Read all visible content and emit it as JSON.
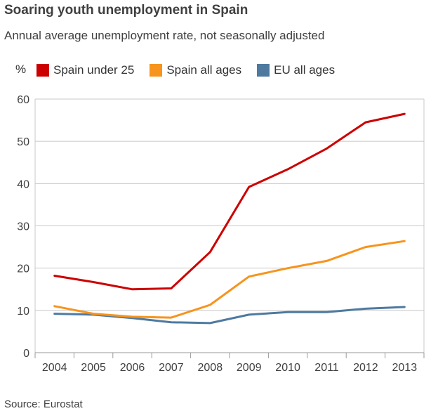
{
  "title": "Soaring youth unemployment in Spain",
  "subtitle": "Annual average unemployment rate, not seasonally adjusted",
  "source": "Source: Eurostat",
  "chart_data": {
    "type": "line",
    "x": [
      "2004",
      "2005",
      "2006",
      "2007",
      "2008",
      "2009",
      "2010",
      "2011",
      "2012",
      "2013"
    ],
    "ylabel": "%",
    "ylim": [
      0,
      60
    ],
    "yticks": [
      0,
      10,
      20,
      30,
      40,
      50,
      60
    ],
    "grid": true,
    "legend_position": "top",
    "series": [
      {
        "name": "Spain under 25",
        "color": "#cc0000",
        "values": [
          18.2,
          16.7,
          15.0,
          15.2,
          23.8,
          39.2,
          43.4,
          48.3,
          54.5,
          56.5
        ]
      },
      {
        "name": "Spain all ages",
        "color": "#f7941d",
        "values": [
          11.0,
          9.2,
          8.5,
          8.3,
          11.3,
          18.0,
          20.0,
          21.7,
          25.0,
          26.4
        ]
      },
      {
        "name": "EU all ages",
        "color": "#4e7aa0",
        "values": [
          9.2,
          9.0,
          8.2,
          7.2,
          7.0,
          9.0,
          9.6,
          9.6,
          10.4,
          10.8
        ]
      }
    ]
  }
}
